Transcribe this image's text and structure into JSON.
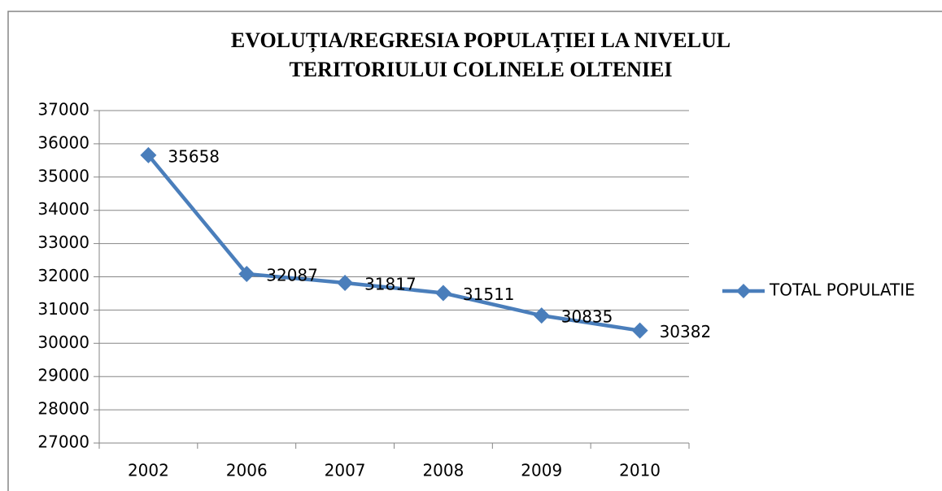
{
  "chart_data": {
    "type": "line",
    "title": [
      "EVOLUȚIA/REGRESIA POPULAȚIEI LA NIVELUL",
      "TERITORIULUI COLINELE OLTENIEI"
    ],
    "categories": [
      "2002",
      "2006",
      "2007",
      "2008",
      "2009",
      "2010"
    ],
    "series": [
      {
        "name": "TOTAL POPULATIE",
        "color": "#4a7ebb",
        "values": [
          35658,
          32087,
          31817,
          31511,
          30835,
          30382
        ]
      }
    ],
    "ylim": [
      27000,
      37000
    ],
    "yticks": [
      27000,
      28000,
      29000,
      30000,
      31000,
      32000,
      33000,
      34000,
      35000,
      36000,
      37000
    ],
    "grid": true,
    "legend": "right"
  }
}
